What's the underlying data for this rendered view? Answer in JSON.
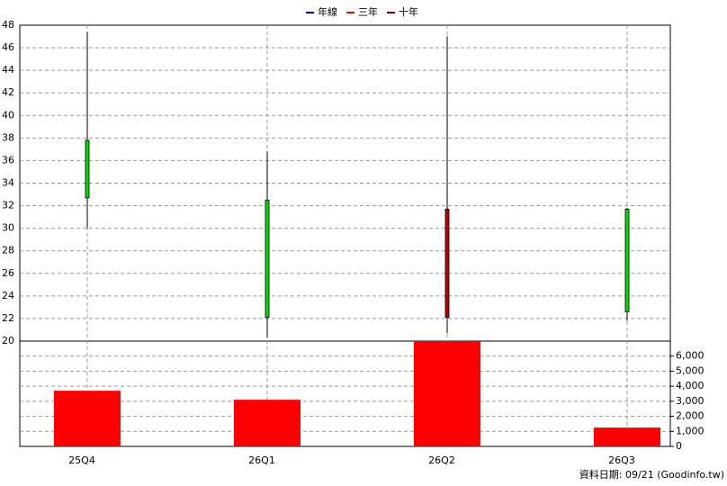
{
  "chart_data": [
    {
      "type": "candlestick",
      "legend": [
        {
          "name": "年線",
          "color": "#0000ff"
        },
        {
          "name": "三年",
          "color": "#ff0000"
        },
        {
          "name": "十年",
          "color": "#800000"
        }
      ],
      "open": [
        37.8,
        32.5,
        22.1,
        31.7
      ],
      "high": [
        47.4,
        36.8,
        47.0,
        31.8
      ],
      "low": [
        30.0,
        20.3,
        20.7,
        21.8
      ],
      "close": [
        32.7,
        22.1,
        31.7,
        22.6
      ],
      "up_color": "#c00000",
      "down_color": "#00dd00",
      "ylim": [
        20,
        48
      ],
      "yticks": [
        20,
        22,
        24,
        26,
        28,
        30,
        32,
        34,
        36,
        38,
        40,
        42,
        44,
        46,
        48
      ],
      "grid": true
    },
    {
      "type": "bar",
      "categories": [
        "25Q4",
        "26Q1",
        "26Q2",
        "26Q3"
      ],
      "values": [
        3700,
        3100,
        7000,
        1250
      ],
      "color": "#ff0000",
      "y2lim": [
        0,
        7000
      ],
      "y2ticks": [
        0,
        {
          "value": 1000,
          "label": "1,000"
        },
        {
          "value": 2000,
          "label": "2,000"
        },
        {
          "value": 3000,
          "label": "3,000"
        },
        {
          "value": 4000,
          "label": "4,000"
        },
        {
          "value": 5000,
          "label": "5,000"
        },
        {
          "value": 6000,
          "label": "6,000"
        }
      ],
      "grid": true
    }
  ],
  "footer": "資料日期: 09/21  (Goodinfo.tw)"
}
